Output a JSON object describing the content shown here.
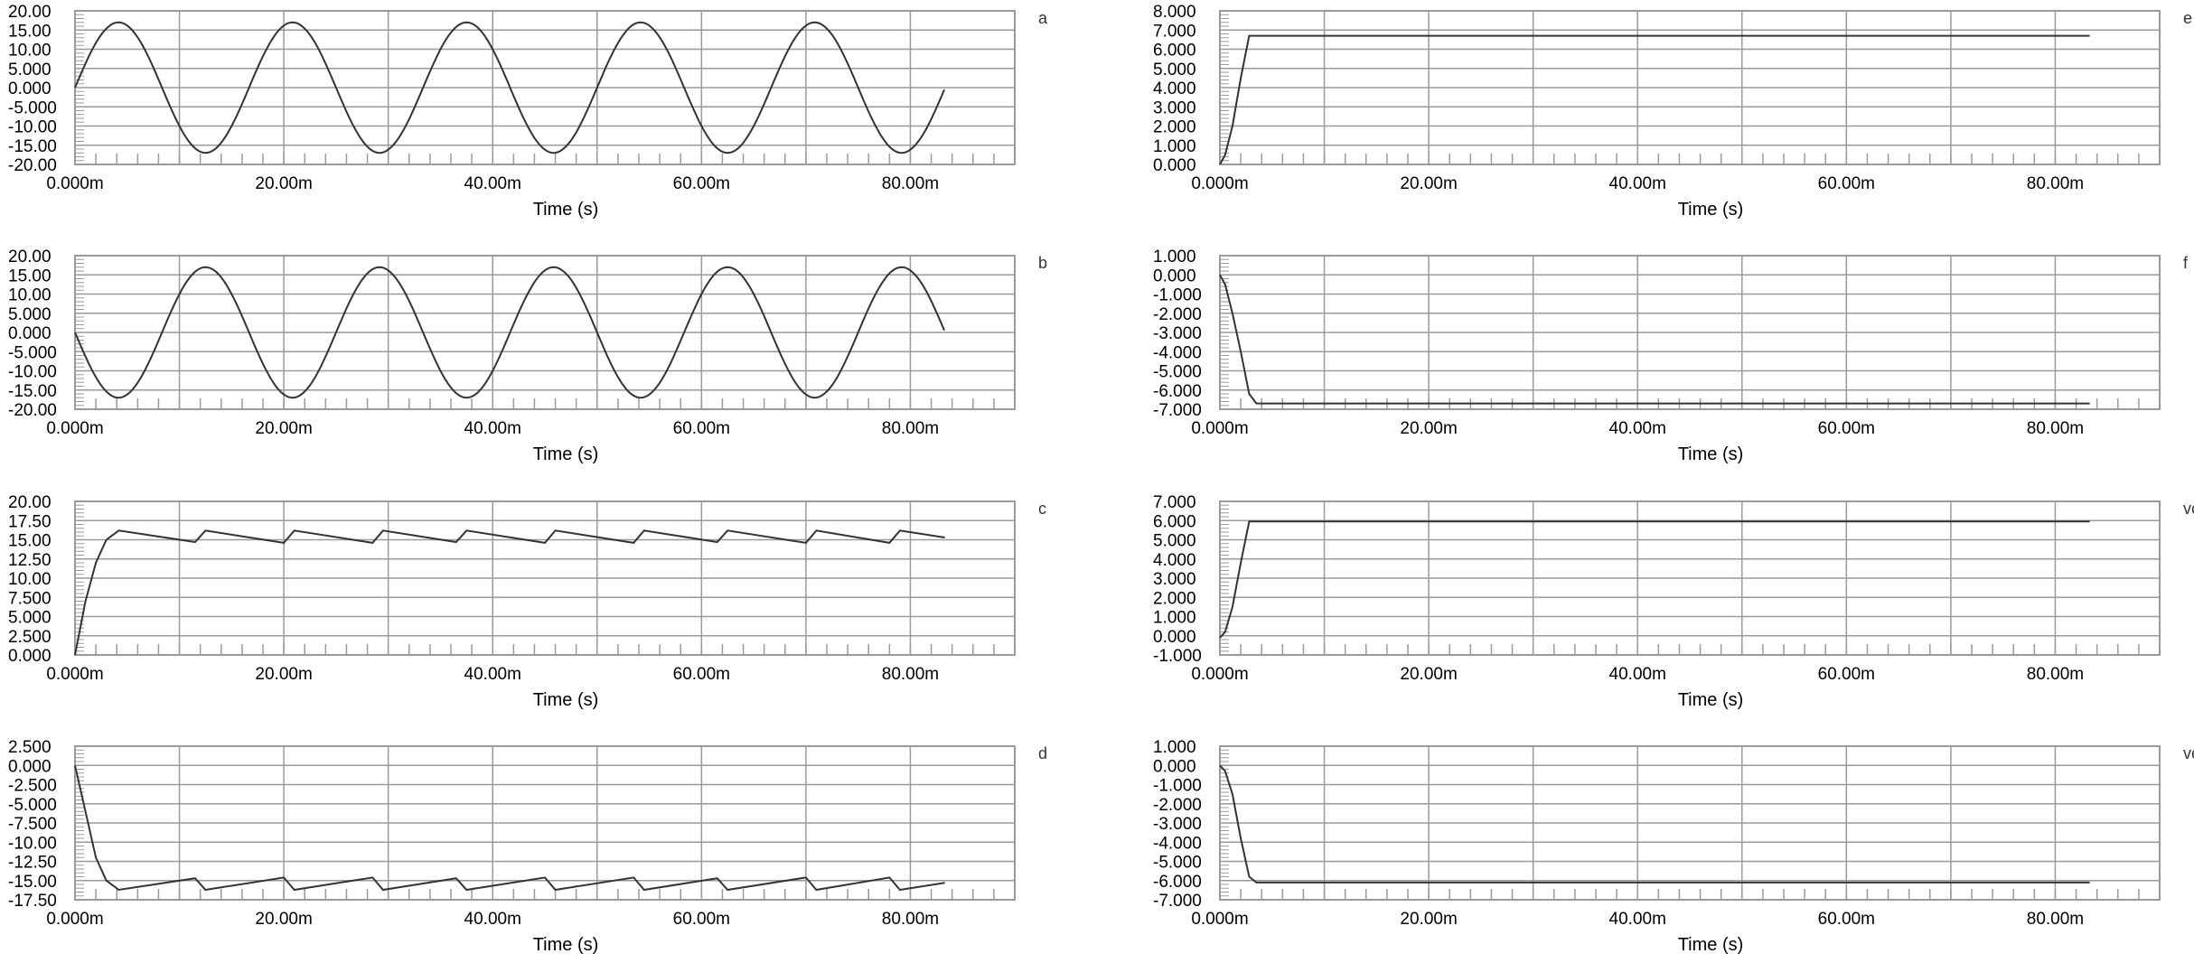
{
  "chart_data": [
    {
      "type": "line",
      "name": "a",
      "yticks": [
        "20.00",
        "15.00",
        "10.00",
        "5.000",
        "0.000",
        "-5.000",
        "-10.00",
        "-15.00",
        "-20.00"
      ],
      "ylim": [
        -20,
        20
      ],
      "xlim": [
        0,
        90
      ],
      "xticks": [
        "0.000m",
        "20.00m",
        "40.00m",
        "60.00m",
        "80.00m"
      ],
      "xticks_at": [
        0,
        20,
        40,
        60,
        80
      ],
      "xlabel": "Time (s)",
      "series": [
        {
          "x": [
            0,
            4.2,
            8.3,
            12.5,
            16.7,
            20.8,
            25,
            29.2,
            33.3,
            37.5,
            41.7,
            45.8,
            50,
            54.2,
            58.3,
            62.5,
            66.7,
            70.8,
            75,
            79.2,
            83.3
          ],
          "y": [
            0,
            17,
            0,
            -17,
            0,
            17,
            0,
            -17,
            0,
            17,
            0,
            -17,
            0,
            17,
            0,
            -17,
            0,
            17,
            0,
            -17,
            0
          ]
        }
      ]
    },
    {
      "type": "line",
      "name": "b",
      "yticks": [
        "20.00",
        "15.00",
        "10.00",
        "5.000",
        "0.000",
        "-5.000",
        "-10.00",
        "-15.00",
        "-20.00"
      ],
      "ylim": [
        -20,
        20
      ],
      "xlim": [
        0,
        90
      ],
      "xticks": [
        "0.000m",
        "20.00m",
        "40.00m",
        "60.00m",
        "80.00m"
      ],
      "xticks_at": [
        0,
        20,
        40,
        60,
        80
      ],
      "xlabel": "Time (s)",
      "series": [
        {
          "x": [
            0,
            4.2,
            8.3,
            12.5,
            16.7,
            20.8,
            25,
            29.2,
            33.3,
            37.5,
            41.7,
            45.8,
            50,
            54.2,
            58.3,
            62.5,
            66.7,
            70.8,
            75,
            79.2,
            83.3
          ],
          "y": [
            0,
            -17,
            0,
            17,
            0,
            -17,
            0,
            17,
            0,
            -17,
            0,
            17,
            0,
            -17,
            0,
            17,
            0,
            -17,
            0,
            17,
            0
          ]
        }
      ]
    },
    {
      "type": "line",
      "name": "c",
      "yticks": [
        "20.00",
        "17.50",
        "15.00",
        "12.50",
        "10.00",
        "7.500",
        "5.000",
        "2.500",
        "0.000"
      ],
      "ylim": [
        0,
        20
      ],
      "xlim": [
        0,
        90
      ],
      "xticks": [
        "0.000m",
        "20.00m",
        "40.00m",
        "60.00m",
        "80.00m"
      ],
      "xticks_at": [
        0,
        20,
        40,
        60,
        80
      ],
      "xlabel": "Time (s)",
      "series": [
        {
          "x": [
            0,
            1,
            2,
            3,
            4.2,
            11.5,
            12.5,
            20,
            21,
            28.5,
            29.5,
            36.5,
            37.5,
            45,
            46,
            53.5,
            54.5,
            61.5,
            62.5,
            70,
            71,
            78,
            79,
            83.3
          ],
          "y": [
            0,
            7,
            12,
            15,
            16.2,
            14.7,
            16.2,
            14.6,
            16.2,
            14.6,
            16.2,
            14.7,
            16.2,
            14.6,
            16.2,
            14.6,
            16.2,
            14.7,
            16.2,
            14.6,
            16.2,
            14.6,
            16.2,
            15.3
          ]
        }
      ]
    },
    {
      "type": "line",
      "name": "d",
      "yticks": [
        "2.500",
        "0.000",
        "-2.500",
        "-5.000",
        "-7.500",
        "-10.00",
        "-12.50",
        "-15.00",
        "-17.50"
      ],
      "ylim": [
        -17.5,
        2.5
      ],
      "xlim": [
        0,
        90
      ],
      "xticks": [
        "0.000m",
        "20.00m",
        "40.00m",
        "60.00m",
        "80.00m"
      ],
      "xticks_at": [
        0,
        20,
        40,
        60,
        80
      ],
      "xlabel": "Time (s)",
      "series": [
        {
          "x": [
            0,
            1,
            2,
            3,
            4.2,
            11.5,
            12.5,
            20,
            21,
            28.5,
            29.5,
            36.5,
            37.5,
            45,
            46,
            53.5,
            54.5,
            61.5,
            62.5,
            70,
            71,
            78,
            79,
            83.3
          ],
          "y": [
            0,
            -6,
            -12,
            -15,
            -16.2,
            -14.7,
            -16.2,
            -14.6,
            -16.2,
            -14.6,
            -16.2,
            -14.7,
            -16.2,
            -14.6,
            -16.2,
            -14.6,
            -16.2,
            -14.7,
            -16.2,
            -14.6,
            -16.2,
            -14.6,
            -16.2,
            -15.3
          ]
        }
      ]
    },
    {
      "type": "line",
      "name": "e",
      "yticks": [
        "8.000",
        "7.000",
        "6.000",
        "5.000",
        "4.000",
        "3.000",
        "2.000",
        "1.000",
        "0.000"
      ],
      "ylim": [
        0,
        8
      ],
      "xlim": [
        0,
        90
      ],
      "xticks": [
        "0.000m",
        "20.00m",
        "40.00m",
        "60.00m",
        "80.00m"
      ],
      "xticks_at": [
        0,
        20,
        40,
        60,
        80
      ],
      "xlabel": "Time (s)",
      "series": [
        {
          "x": [
            0,
            0.5,
            1.2,
            2,
            2.8,
            83.3
          ],
          "y": [
            0,
            0.5,
            2,
            4.5,
            6.7,
            6.7
          ]
        }
      ]
    },
    {
      "type": "line",
      "name": "f",
      "yticks": [
        "1.000",
        "0.000",
        "-1.000",
        "-2.000",
        "-3.000",
        "-4.000",
        "-5.000",
        "-6.000",
        "-7.000"
      ],
      "ylim": [
        -7,
        1
      ],
      "xlim": [
        0,
        90
      ],
      "xticks": [
        "0.000m",
        "20.00m",
        "40.00m",
        "60.00m",
        "80.00m"
      ],
      "xticks_at": [
        0,
        20,
        40,
        60,
        80
      ],
      "xlabel": "Time (s)",
      "series": [
        {
          "x": [
            0,
            0.5,
            1.2,
            2,
            2.8,
            3.5,
            83.3
          ],
          "y": [
            0,
            -0.5,
            -2,
            -4,
            -6.2,
            -6.7,
            -6.7
          ]
        }
      ]
    },
    {
      "type": "line",
      "name": "vcc",
      "yticks": [
        "7.000",
        "6.000",
        "5.000",
        "4.000",
        "3.000",
        "2.000",
        "1.000",
        "0.000",
        "-1.000"
      ],
      "ylim": [
        -1,
        7
      ],
      "xlim": [
        0,
        90
      ],
      "xticks": [
        "0.000m",
        "20.00m",
        "40.00m",
        "60.00m",
        "80.00m"
      ],
      "xticks_at": [
        0,
        20,
        40,
        60,
        80
      ],
      "xlabel": "Time (s)",
      "series": [
        {
          "x": [
            0,
            0.5,
            1.2,
            2,
            2.8,
            83.3
          ],
          "y": [
            -0.1,
            0.2,
            1.5,
            3.8,
            5.95,
            5.95
          ]
        }
      ]
    },
    {
      "type": "line",
      "name": "vee",
      "yticks": [
        "1.000",
        "0.000",
        "-1.000",
        "-2.000",
        "-3.000",
        "-4.000",
        "-5.000",
        "-6.000",
        "-7.000"
      ],
      "ylim": [
        -7,
        1
      ],
      "xlim": [
        0,
        90
      ],
      "xticks": [
        "0.000m",
        "20.00m",
        "40.00m",
        "60.00m",
        "80.00m"
      ],
      "xticks_at": [
        0,
        20,
        40,
        60,
        80
      ],
      "xlabel": "Time (s)",
      "series": [
        {
          "x": [
            0,
            0.5,
            1.2,
            2,
            2.8,
            3.5,
            83.3
          ],
          "y": [
            0,
            -0.3,
            -1.5,
            -3.8,
            -5.8,
            -6.1,
            -6.1
          ]
        }
      ]
    }
  ],
  "colors": {
    "grid": "#9a9a9a",
    "line": "#333333",
    "frame": "#9a9a9a",
    "background": "#ffffff"
  }
}
